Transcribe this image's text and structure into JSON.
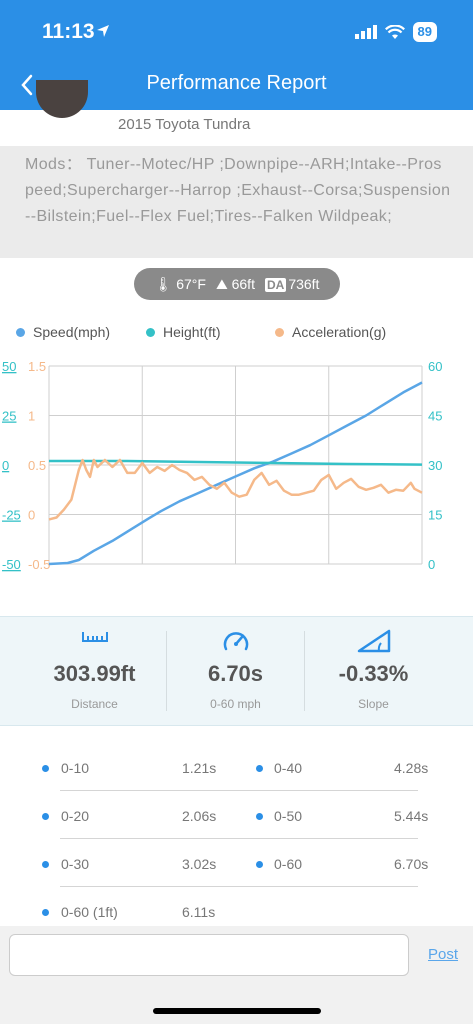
{
  "status_bar": {
    "time": "11:13",
    "battery": "89",
    "icons": [
      "location-arrow-icon",
      "signal-icon",
      "wifi-icon",
      "battery-icon"
    ]
  },
  "nav": {
    "title": "Performance Report",
    "back_icon": "back-chevron-icon"
  },
  "vehicle": {
    "name": "2015 Toyota Tundra"
  },
  "mods": {
    "text": "Mods：  Tuner--Motec/HP ;Downpipe--ARH;Intake--Prospeed;Supercharger--Harrop ;Exhaust--Corsa;Suspension--Bilstein;Fuel--Flex  Fuel;Tires--Falken Wildpeak;"
  },
  "conditions": {
    "temperature": "67°F",
    "altitude": "66ft",
    "da_label": "DA",
    "density_altitude": "736ft"
  },
  "legend": [
    {
      "label": "Speed(mph)",
      "color": "#5aa6e6"
    },
    {
      "label": "Height(ft)",
      "color": "#34c1c7"
    },
    {
      "label": "Acceleration(g)",
      "color": "#f5b98a"
    }
  ],
  "chart_data": {
    "type": "line",
    "title": "",
    "grid": true,
    "left_axis_outer": {
      "ticks": [
        "50",
        "25",
        "0",
        "-25",
        "-50"
      ],
      "color": "#34c1c7",
      "series": "Height(ft)",
      "range": [
        -50,
        50
      ]
    },
    "left_axis_inner": {
      "ticks": [
        "1.5",
        "1",
        "0.5",
        "0",
        "-0.5"
      ],
      "color": "#f5b98a",
      "series": "Acceleration(g)",
      "range": [
        -0.5,
        1.5
      ]
    },
    "right_axis": {
      "ticks": [
        "60",
        "45",
        "30",
        "15",
        "0"
      ],
      "color": "#34c1c7",
      "series": "Speed(mph)",
      "range": [
        0,
        60
      ]
    },
    "x_range": [
      0,
      1
    ],
    "series": [
      {
        "name": "Speed(mph)",
        "color": "#5aa6e6",
        "axis": "right",
        "points": [
          [
            0,
            0
          ],
          [
            0.05,
            0.3
          ],
          [
            0.08,
            1.2
          ],
          [
            0.12,
            4
          ],
          [
            0.17,
            7
          ],
          [
            0.22,
            10.5
          ],
          [
            0.27,
            14
          ],
          [
            0.3,
            16
          ],
          [
            0.35,
            19
          ],
          [
            0.4,
            21.5
          ],
          [
            0.45,
            24
          ],
          [
            0.5,
            26.5
          ],
          [
            0.55,
            29
          ],
          [
            0.6,
            31
          ],
          [
            0.65,
            33.5
          ],
          [
            0.7,
            36
          ],
          [
            0.75,
            39
          ],
          [
            0.8,
            42
          ],
          [
            0.85,
            45
          ],
          [
            0.9,
            48.5
          ],
          [
            0.95,
            52
          ],
          [
            1.0,
            55
          ]
        ]
      },
      {
        "name": "Height(ft)",
        "color": "#34c1c7",
        "axis": "left_outer",
        "points": [
          [
            0,
            2
          ],
          [
            0.2,
            2
          ],
          [
            0.4,
            1.5
          ],
          [
            0.6,
            1
          ],
          [
            0.8,
            0.5
          ],
          [
            1.0,
            0.2
          ]
        ]
      },
      {
        "name": "Acceleration(g)",
        "color": "#f5b98a",
        "axis": "left_inner",
        "points": [
          [
            0,
            -0.05
          ],
          [
            0.02,
            -0.03
          ],
          [
            0.04,
            0.05
          ],
          [
            0.06,
            0.15
          ],
          [
            0.07,
            0.3
          ],
          [
            0.08,
            0.45
          ],
          [
            0.09,
            0.55
          ],
          [
            0.1,
            0.45
          ],
          [
            0.11,
            0.38
          ],
          [
            0.12,
            0.55
          ],
          [
            0.13,
            0.48
          ],
          [
            0.15,
            0.55
          ],
          [
            0.17,
            0.48
          ],
          [
            0.19,
            0.55
          ],
          [
            0.21,
            0.42
          ],
          [
            0.23,
            0.42
          ],
          [
            0.25,
            0.52
          ],
          [
            0.27,
            0.42
          ],
          [
            0.29,
            0.48
          ],
          [
            0.31,
            0.44
          ],
          [
            0.33,
            0.5
          ],
          [
            0.35,
            0.45
          ],
          [
            0.37,
            0.42
          ],
          [
            0.39,
            0.35
          ],
          [
            0.41,
            0.38
          ],
          [
            0.43,
            0.3
          ],
          [
            0.45,
            0.26
          ],
          [
            0.47,
            0.32
          ],
          [
            0.49,
            0.22
          ],
          [
            0.51,
            0.18
          ],
          [
            0.53,
            0.2
          ],
          [
            0.55,
            0.35
          ],
          [
            0.57,
            0.42
          ],
          [
            0.59,
            0.3
          ],
          [
            0.61,
            0.34
          ],
          [
            0.63,
            0.24
          ],
          [
            0.65,
            0.2
          ],
          [
            0.67,
            0.2
          ],
          [
            0.69,
            0.22
          ],
          [
            0.71,
            0.24
          ],
          [
            0.73,
            0.35
          ],
          [
            0.75,
            0.4
          ],
          [
            0.77,
            0.26
          ],
          [
            0.79,
            0.32
          ],
          [
            0.81,
            0.36
          ],
          [
            0.83,
            0.28
          ],
          [
            0.85,
            0.25
          ],
          [
            0.87,
            0.27
          ],
          [
            0.89,
            0.3
          ],
          [
            0.91,
            0.22
          ],
          [
            0.93,
            0.25
          ],
          [
            0.95,
            0.24
          ],
          [
            0.97,
            0.32
          ],
          [
            0.98,
            0.26
          ],
          [
            1.0,
            0.22
          ]
        ]
      }
    ]
  },
  "stats": [
    {
      "icon": "ruler-icon",
      "value": "303.99ft",
      "label": "Distance"
    },
    {
      "icon": "speedometer-icon",
      "value": "6.70s",
      "label": "0-60 mph"
    },
    {
      "icon": "slope-icon",
      "value": "-0.33%",
      "label": "Slope"
    }
  ],
  "splits": [
    {
      "label": "0-10",
      "time": "1.21s"
    },
    {
      "label": "0-40",
      "time": "4.28s"
    },
    {
      "label": "0-20",
      "time": "2.06s"
    },
    {
      "label": "0-50",
      "time": "5.44s"
    },
    {
      "label": "0-30",
      "time": "3.02s"
    },
    {
      "label": "0-60",
      "time": "6.70s"
    },
    {
      "label": "0-60 (1ft)",
      "time": "6.11s"
    }
  ],
  "comment": {
    "placeholder": "",
    "post_label": "Post"
  }
}
